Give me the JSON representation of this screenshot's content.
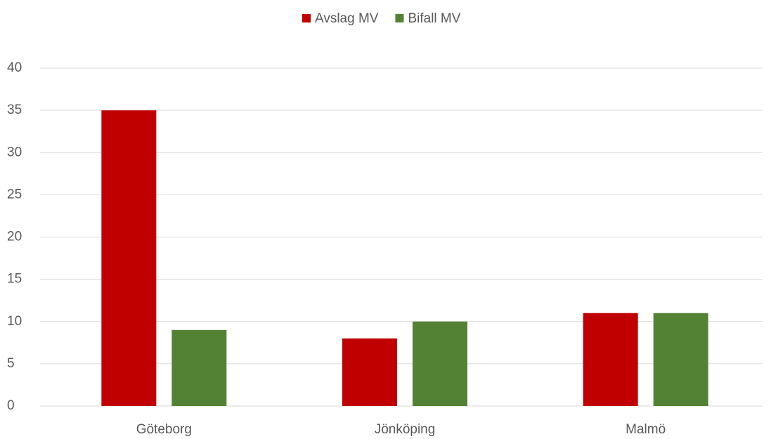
{
  "chart_data": {
    "type": "bar",
    "categories": [
      "Göteborg",
      "Jönköping",
      "Malmö"
    ],
    "series": [
      {
        "name": "Avslag MV",
        "color": "#c00000",
        "values": [
          35,
          8,
          11
        ]
      },
      {
        "name": "Bifall MV",
        "color": "#548235",
        "values": [
          9,
          10,
          11
        ]
      }
    ],
    "ylim": [
      0,
      40
    ],
    "yticks": [
      0,
      5,
      10,
      15,
      20,
      25,
      30,
      35,
      40
    ],
    "grid": true,
    "legend": "top"
  }
}
